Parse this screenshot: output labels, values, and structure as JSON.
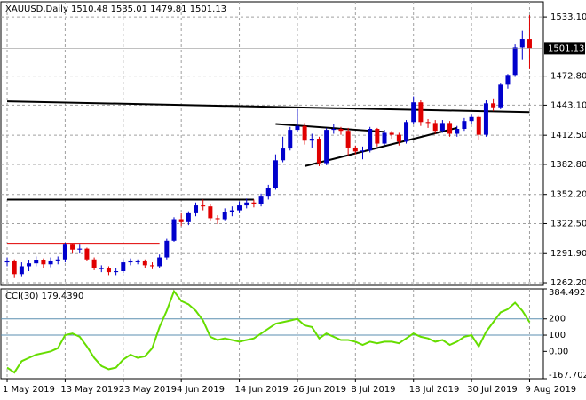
{
  "chart_data": [
    {
      "type": "candlestick",
      "symbol": "XAUUSD,Daily",
      "open": [
        1283,
        1284,
        1271,
        1279,
        1282,
        1285,
        1281,
        1284,
        1286,
        1301,
        1296,
        1297,
        1286,
        1277,
        1277,
        1273,
        1274,
        1283,
        1284,
        1284,
        1280,
        1279,
        1288,
        1305,
        1327,
        1324,
        1333,
        1341,
        1340,
        1328,
        1327,
        1334,
        1336,
        1341,
        1344,
        1342,
        1350,
        1359,
        1387,
        1399,
        1418,
        1422,
        1407,
        1409,
        1384,
        1418,
        1419,
        1417,
        1400,
        1396,
        1397,
        1419,
        1404,
        1415,
        1413,
        1406,
        1426,
        1446,
        1426,
        1425,
        1417,
        1425,
        1414,
        1419,
        1427,
        1431,
        1413,
        1445,
        1441,
        1464,
        1474,
        1502,
        1510.48
      ],
      "high": [
        1288,
        1286,
        1283,
        1285,
        1289,
        1287,
        1288,
        1289,
        1303,
        1302,
        1301,
        1298,
        1288,
        1280,
        1279,
        1277,
        1286,
        1287,
        1286,
        1286,
        1283,
        1291,
        1307,
        1329,
        1333,
        1335,
        1344,
        1347,
        1342,
        1331,
        1338,
        1340,
        1345,
        1348,
        1347,
        1353,
        1362,
        1393,
        1411,
        1421,
        1439,
        1425,
        1414,
        1411,
        1420,
        1424,
        1421,
        1420,
        1402,
        1401,
        1421,
        1420,
        1418,
        1417,
        1415,
        1428,
        1452,
        1448,
        1429,
        1428,
        1428,
        1427,
        1422,
        1430,
        1434,
        1433,
        1448,
        1450,
        1466,
        1475,
        1505,
        1519,
        1535.01
      ],
      "low": [
        1279,
        1267,
        1268,
        1274,
        1279,
        1277,
        1278,
        1281,
        1283,
        1292,
        1292,
        1284,
        1275,
        1273,
        1270,
        1270,
        1272,
        1280,
        1281,
        1277,
        1276,
        1277,
        1286,
        1304,
        1320,
        1321,
        1330,
        1336,
        1325,
        1322,
        1325,
        1330,
        1333,
        1338,
        1339,
        1340,
        1347,
        1357,
        1385,
        1397,
        1416,
        1403,
        1400,
        1381,
        1382,
        1414,
        1413,
        1392,
        1393,
        1388,
        1395,
        1401,
        1402,
        1409,
        1402,
        1404,
        1424,
        1422,
        1420,
        1414,
        1415,
        1411,
        1411,
        1417,
        1424,
        1408,
        1411,
        1437,
        1439,
        1460,
        1472,
        1490,
        1479.81
      ],
      "close": [
        1284,
        1271,
        1279,
        1282,
        1285,
        1281,
        1284,
        1286,
        1301,
        1296,
        1297,
        1286,
        1277,
        1277,
        1273,
        1274,
        1283,
        1284,
        1284,
        1280,
        1279,
        1288,
        1305,
        1327,
        1324,
        1333,
        1341,
        1340,
        1328,
        1327,
        1334,
        1336,
        1341,
        1344,
        1342,
        1350,
        1359,
        1387,
        1399,
        1418,
        1422,
        1407,
        1409,
        1384,
        1418,
        1419,
        1417,
        1400,
        1396,
        1397,
        1419,
        1404,
        1415,
        1413,
        1406,
        1426,
        1446,
        1426,
        1425,
        1417,
        1425,
        1414,
        1419,
        1427,
        1431,
        1413,
        1445,
        1441,
        1464,
        1474,
        1502,
        1510.48,
        1501.13
      ],
      "up_color": "#0000cc",
      "down_color": "#e00000",
      "xlim": [
        -0.86,
        73.9
      ],
      "xticks": [
        {
          "value": 0,
          "label": "1 May 2019"
        },
        {
          "value": 8,
          "label": "13 May 2019"
        },
        {
          "value": 16,
          "label": "23 May 2019"
        },
        {
          "value": 24,
          "label": "4 Jun 2019"
        },
        {
          "value": 32,
          "label": "14 Jun 2019"
        },
        {
          "value": 40,
          "label": "26 Jun 2019"
        },
        {
          "value": 48,
          "label": "8 Jul 2019"
        },
        {
          "value": 56,
          "label": "18 Jul 2019"
        },
        {
          "value": 64,
          "label": "30 Jul 2019"
        },
        {
          "value": 72,
          "label": "9 Aug 2019"
        }
      ],
      "ylim": [
        1259.5,
        1548.6
      ],
      "yticks": [
        {
          "value": 1533.1,
          "label": "1533.10"
        },
        {
          "value": 1472.8,
          "label": "1472.80"
        },
        {
          "value": 1443.1,
          "label": "1443.10"
        },
        {
          "value": 1412.5,
          "label": "1412.50"
        },
        {
          "value": 1382.8,
          "label": "1382.80"
        },
        {
          "value": 1352.2,
          "label": "1352.20"
        },
        {
          "value": 1322.5,
          "label": "1322.50"
        },
        {
          "value": 1291.9,
          "label": "1291.90"
        },
        {
          "value": 1262.2,
          "label": "1262.20"
        }
      ],
      "grid": true,
      "lines": [
        {
          "x": [
            0,
            21
          ],
          "y": [
            1302,
            1302
          ],
          "color": "#e00000"
        },
        {
          "x": [
            0,
            34
          ],
          "y": [
            1347,
            1347
          ],
          "color": "#000000"
        },
        {
          "x": [
            0,
            72
          ],
          "y": [
            1447,
            1436
          ],
          "color": "#000000"
        },
        {
          "x": [
            41,
            62
          ],
          "y": [
            1381,
            1420
          ],
          "color": "#000000"
        },
        {
          "x": [
            37,
            52
          ],
          "y": [
            1424,
            1416
          ],
          "color": "#000000"
        }
      ]
    },
    {
      "type": "line",
      "name": "CCI(30)",
      "last_value_label": "179.4390",
      "color": "#66dd00",
      "values": [
        -100,
        -130,
        -60,
        -40,
        -20,
        -10,
        0,
        20,
        100,
        110,
        90,
        30,
        -40,
        -90,
        -110,
        -100,
        -50,
        -20,
        -40,
        -30,
        20,
        150,
        250,
        370,
        310,
        290,
        250,
        190,
        90,
        70,
        80,
        70,
        60,
        70,
        80,
        110,
        140,
        170,
        180,
        190,
        200,
        160,
        150,
        80,
        110,
        90,
        70,
        70,
        60,
        40,
        60,
        50,
        60,
        60,
        50,
        80,
        110,
        90,
        80,
        60,
        70,
        40,
        60,
        90,
        100,
        30,
        120,
        180,
        240,
        260,
        300,
        250,
        179.439
      ],
      "ylim": [
        -167.702,
        384.4925
      ],
      "yticks": [
        {
          "value": 384.4925,
          "label": "384.4925"
        },
        200,
        100,
        {
          "value": 0,
          "label": "0.00"
        },
        {
          "value": -167.702,
          "label": "-167.702"
        }
      ],
      "levels": [
        200,
        100
      ]
    }
  ]
}
